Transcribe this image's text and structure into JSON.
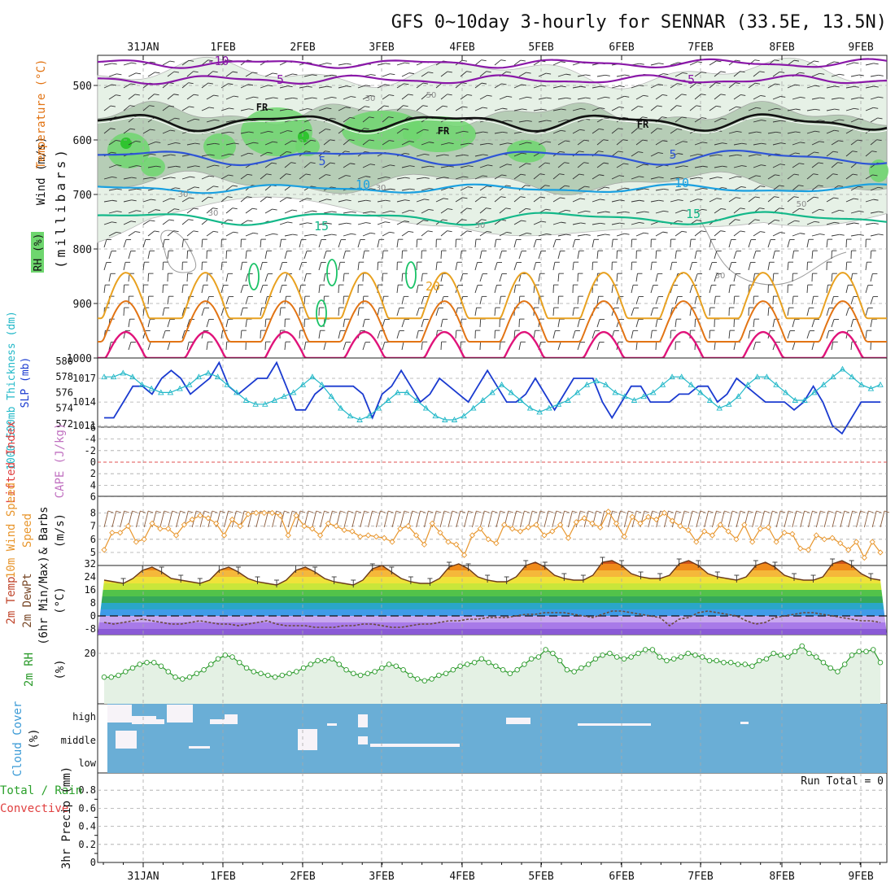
{
  "title": "GFS 0~10day 3-hourly for SENNAR (33.5E, 13.5N)",
  "dates": [
    "31JAN",
    "1FEB",
    "2FEB",
    "3FEB",
    "4FEB",
    "5FEB",
    "6FEB",
    "7FEB",
    "8FEB",
    "9FEB"
  ],
  "colors": {
    "grid": "#a8a8a8",
    "barb": "#333333",
    "rh_light": "#e6f1e6",
    "rh_mid": "#a6c2a6",
    "rh_green": "#6ed66e",
    "temp_purple": "#8a18a8",
    "temp_black": "#111111",
    "temp_blue": "#2f55d6",
    "temp_lblue": "#1aa0e0",
    "temp_teal": "#13b889",
    "temp_green2": "#19c266",
    "temp_orange": "#e8a120",
    "temp_dorange": "#e27414",
    "temp_magenta": "#e0137a",
    "slp_line": "#1b3bd0",
    "thick_line": "#22b8c8",
    "wind_line": "#e8962d",
    "rh2m_line": "#2a9a2a",
    "rh2m_fill": "#e4f1e4",
    "cloud_fill": "#6aaed6",
    "lifted_zero": "#e05050"
  },
  "panels": {
    "sounding": {
      "y_label_wind": "Wind (m/s)",
      "y_label_temp": "Temperature (°C)",
      "y_label_rh": "RH (%)",
      "y_label_p": "(millibars)",
      "y_ticks": [
        500,
        600,
        700,
        800,
        900,
        1000
      ],
      "contour_labels": [
        {
          "text": "-10",
          "color": "temp_purple"
        },
        {
          "text": "-5",
          "color": "temp_purple"
        },
        {
          "text": "-5",
          "color": "temp_purple"
        },
        {
          "text": "FR",
          "color": "temp_black"
        },
        {
          "text": "FR",
          "color": "temp_black"
        },
        {
          "text": "FR",
          "color": "temp_black"
        },
        {
          "text": "5",
          "color": "temp_blue"
        },
        {
          "text": "5",
          "color": "temp_blue"
        },
        {
          "text": "10",
          "color": "temp_lblue"
        },
        {
          "text": "10",
          "color": "temp_lblue"
        },
        {
          "text": "15",
          "color": "temp_teal"
        },
        {
          "text": "15",
          "color": "temp_teal"
        },
        {
          "text": "20",
          "color": "temp_orange"
        }
      ],
      "rh_labels": [
        "30",
        "30",
        "30",
        "30",
        "30",
        "30",
        "50",
        "50"
      ]
    },
    "slp": {
      "label_thickness": "1000-500mb Thickness (dm)",
      "label_slp": "SLP (mb)",
      "left_ticks": [
        "580",
        "578",
        "576",
        "574",
        "572"
      ],
      "right_ticks": [
        "1017",
        "1014",
        "1011"
      ]
    },
    "cape": {
      "label_li": "Lifted Index",
      "label_cape": "CAPE (J/kg)",
      "ticks": [
        "-6",
        "-4",
        "-2",
        "0",
        "2",
        "4",
        "6"
      ]
    },
    "wind10m": {
      "label": "10m Wind Speed & Barbs",
      "unit": "(m/s)",
      "ticks": [
        "8",
        "7",
        "6",
        "5"
      ]
    },
    "temp2m": {
      "label": "2m Temp 2m DewPt (6hr Min/Max)",
      "unit": "(°C)",
      "ticks": [
        "32",
        "24",
        "16",
        "8",
        "0",
        "-8"
      ]
    },
    "rh2m": {
      "label": "2m RH",
      "unit": "(%)",
      "ticks": [
        "20"
      ]
    },
    "cloud": {
      "label": "Cloud Cover",
      "unit": "(%)",
      "levels": [
        "high",
        "middle",
        "low"
      ]
    },
    "precip": {
      "label_total": "Total / Rain",
      "label_conv": "Convective",
      "label_precip": "3hr Precip (mm)",
      "ticks": [
        "0.8",
        "0.6",
        "0.4",
        "0.2",
        "0"
      ],
      "run_total": "Run Total = 0"
    }
  },
  "chart_data": [
    {
      "type": "line",
      "title": "SLP and 1000-500mb thickness",
      "series": [
        {
          "name": "SLP (mb)",
          "values": [
            1012,
            1012,
            1014,
            1016,
            1016,
            1015,
            1017,
            1018,
            1017,
            1015,
            1016,
            1017,
            1019,
            1016,
            1015,
            1016,
            1017,
            1017,
            1019,
            1016,
            1013,
            1013,
            1015,
            1016,
            1016,
            1016,
            1016,
            1015,
            1012,
            1015,
            1016,
            1018,
            1016,
            1014,
            1015,
            1017,
            1016,
            1015,
            1014,
            1016,
            1018,
            1016,
            1014,
            1014,
            1015,
            1017,
            1015,
            1013,
            1015,
            1017,
            1017,
            1017,
            1014,
            1012,
            1014,
            1016,
            1016,
            1014,
            1014,
            1014,
            1015,
            1015,
            1016,
            1016,
            1014,
            1015,
            1017,
            1016,
            1015,
            1014,
            1014,
            1014,
            1013,
            1014,
            1016,
            1014,
            1011,
            1010,
            1012,
            1014,
            1014,
            1014
          ]
        },
        {
          "name": "1000-500mb Thickness (dm)",
          "values": [
            578,
            578,
            578.5,
            578,
            577,
            576.5,
            576,
            576,
            576.5,
            577,
            578,
            578.5,
            578,
            577,
            576,
            575,
            574.5,
            574.5,
            575,
            575.5,
            576,
            577,
            578,
            577,
            575.5,
            574,
            573,
            572.5,
            573,
            574,
            575,
            576,
            576,
            575,
            574,
            573,
            572.5,
            572.5,
            573,
            574,
            575,
            576,
            577,
            576,
            575,
            574,
            573.5,
            574,
            574.5,
            575,
            576,
            577,
            577.5,
            577,
            576,
            575.5,
            575,
            575.5,
            576,
            577,
            578,
            578,
            577,
            576,
            575,
            574,
            574.5,
            575.5,
            577,
            578,
            578,
            577,
            576,
            575,
            575,
            576,
            577,
            578,
            579,
            578,
            577,
            576.5,
            577
          ]
        }
      ]
    },
    {
      "type": "line",
      "title": "10m wind speed",
      "series": [
        {
          "name": "10m Wind Speed (m/s)",
          "values": [
            5.2,
            6.5,
            6.5,
            7.0,
            5.8,
            6.0,
            7.2,
            6.8,
            6.8,
            6.3,
            7.1,
            7.5,
            7.8,
            7.6,
            7.2,
            6.3,
            7.5,
            7.0,
            7.9,
            8.0,
            8.0,
            8.0,
            7.8,
            6.3,
            7.8,
            7.0,
            6.8,
            6.3,
            7.2,
            7.0,
            6.7,
            6.6,
            6.2,
            6.3,
            6.2,
            6.1,
            5.8,
            6.8,
            7.0,
            6.3,
            5.6,
            7.2,
            6.5,
            5.8,
            5.6,
            4.8,
            6.3,
            6.8,
            6.0,
            5.7,
            7.1,
            6.8,
            6.6,
            6.9,
            7.1,
            6.3,
            6.6,
            7.1,
            6.1,
            7.3,
            7.6,
            7.2,
            6.9,
            8.1,
            7.2,
            6.2,
            7.7,
            7.2,
            7.7,
            7.5,
            8.0,
            7.4,
            7.0,
            6.7,
            5.8,
            6.6,
            6.3,
            7.1,
            6.6,
            6.0,
            7.1,
            5.8,
            6.8,
            6.9,
            5.8,
            6.5,
            6.4,
            5.3,
            5.2,
            6.3,
            6.0,
            6.1,
            5.7,
            5.2,
            5.8,
            4.6,
            5.8,
            5.0
          ]
        }
      ]
    },
    {
      "type": "line",
      "title": "2m temperature and dewpoint",
      "series": [
        {
          "name": "2m Temp (°C)",
          "values": [
            22,
            21,
            20,
            23,
            28,
            30,
            27,
            23,
            22,
            21,
            20,
            22,
            28,
            30,
            27,
            23,
            21,
            20,
            19,
            22,
            28,
            30,
            27,
            23,
            21,
            20,
            19,
            22,
            29,
            31,
            27,
            23,
            21,
            20,
            20,
            23,
            30,
            32,
            29,
            24,
            22,
            21,
            21,
            24,
            31,
            33,
            30,
            25,
            23,
            22,
            22,
            25,
            33,
            34,
            31,
            26,
            24,
            23,
            23,
            25,
            32,
            34,
            31,
            26,
            24,
            23,
            22,
            24,
            31,
            33,
            30,
            25,
            23,
            22,
            22,
            24,
            32,
            34,
            31,
            26,
            23,
            22
          ]
        },
        {
          "name": "2m DewPt (°C)",
          "values": [
            -4,
            -5,
            -4,
            -3,
            -2,
            -3,
            -4,
            -5,
            -5,
            -4,
            -3,
            -4,
            -5,
            -5,
            -6,
            -5,
            -4,
            -3,
            -5,
            -6,
            -6,
            -6,
            -7,
            -7,
            -7,
            -6,
            -6,
            -5,
            -5,
            -6,
            -7,
            -7,
            -6,
            -5,
            -5,
            -4,
            -3,
            -3,
            -2,
            -2,
            -1,
            -1,
            -1,
            0,
            1,
            1,
            2,
            2,
            2,
            1,
            0,
            -1,
            1,
            3,
            3,
            2,
            1,
            0,
            -1,
            -6,
            -2,
            -1,
            2,
            3,
            2,
            1,
            0,
            -3,
            -5,
            -4,
            -1,
            0,
            1,
            2,
            2,
            1,
            0,
            -1,
            -2,
            -3,
            -3,
            -4
          ]
        }
      ]
    },
    {
      "type": "line",
      "title": "2m RH",
      "series": [
        {
          "name": "2m RH (%)",
          "values": [
            7,
            7,
            8,
            10,
            12,
            14,
            15,
            15,
            13,
            10,
            7,
            6,
            7,
            9,
            11,
            14,
            17,
            19,
            18,
            15,
            12,
            10,
            9,
            8,
            7,
            8,
            9,
            10,
            12,
            14,
            16,
            16,
            17,
            14,
            11,
            9,
            8,
            9,
            10,
            12,
            14,
            13,
            11,
            8,
            6,
            5,
            6,
            8,
            9,
            11,
            13,
            14,
            15,
            17,
            15,
            13,
            11,
            9,
            11,
            14,
            17,
            18,
            22,
            20,
            16,
            11,
            10,
            12,
            14,
            17,
            19,
            20,
            18,
            17,
            18,
            20,
            22,
            22,
            18,
            16,
            17,
            18,
            20,
            19,
            18,
            16,
            16,
            15,
            15,
            14,
            14,
            13,
            16,
            17,
            20,
            19,
            18,
            21,
            24,
            20,
            18,
            15,
            12,
            10,
            14,
            19,
            21,
            21,
            22,
            15
          ]
        }
      ]
    }
  ]
}
